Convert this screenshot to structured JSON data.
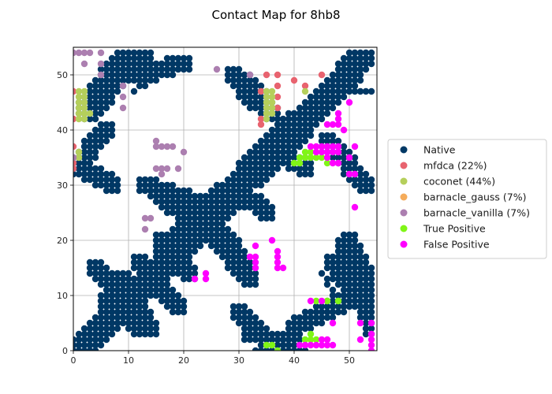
{
  "chart_data": {
    "type": "scatter",
    "title": "Contact Map for 8hb8",
    "xlabel": "",
    "ylabel": "",
    "xlim": [
      0,
      55
    ],
    "ylim": [
      0,
      55
    ],
    "xticks": [
      0,
      10,
      20,
      30,
      40,
      50
    ],
    "yticks": [
      0,
      10,
      20,
      30,
      40,
      50
    ],
    "grid": true,
    "legend_position": "right",
    "series": [
      {
        "name": "Native",
        "color": "#003865",
        "points": [],
        "segments": [
          {
            "x0": 0,
            "y0": 0,
            "x1": 5,
            "y1": 5,
            "w": 2
          },
          {
            "x0": 3,
            "y0": 2,
            "x1": 15,
            "y1": 14,
            "w": 3
          },
          {
            "x0": 6,
            "y0": 9,
            "x1": 12,
            "y1": 4,
            "w": 2
          },
          {
            "x0": 4,
            "y0": 15,
            "x1": 10,
            "y1": 9,
            "w": 2
          },
          {
            "x0": 9,
            "y0": 13,
            "x1": 14,
            "y1": 4,
            "w": 2
          },
          {
            "x0": 12,
            "y0": 11,
            "x1": 21,
            "y1": 21,
            "w": 3
          },
          {
            "x0": 12,
            "y0": 16,
            "x1": 19,
            "y1": 8,
            "w": 2
          },
          {
            "x0": 16,
            "y0": 20,
            "x1": 21,
            "y1": 14,
            "w": 2
          },
          {
            "x0": 20,
            "y0": 20,
            "x1": 27,
            "y1": 27,
            "w": 4
          },
          {
            "x0": 20,
            "y0": 27,
            "x1": 28,
            "y1": 19,
            "w": 3
          },
          {
            "x0": 13,
            "y0": 30,
            "x1": 22,
            "y1": 27,
            "w": 2
          },
          {
            "x0": 16,
            "y0": 28,
            "x1": 21,
            "y1": 24,
            "w": 2
          },
          {
            "x0": 27,
            "y0": 27,
            "x1": 34,
            "y1": 34,
            "w": 3
          },
          {
            "x0": 26,
            "y0": 20,
            "x1": 32,
            "y1": 13,
            "w": 2
          },
          {
            "x0": 29,
            "y0": 18,
            "x1": 32,
            "y1": 13,
            "w": 2
          },
          {
            "x0": 30,
            "y0": 29,
            "x1": 35,
            "y1": 25,
            "w": 2
          },
          {
            "x0": 33,
            "y0": 33,
            "x1": 40,
            "y1": 40,
            "w": 4
          },
          {
            "x0": 36,
            "y0": 37,
            "x1": 42,
            "y1": 33,
            "w": 2
          },
          {
            "x0": 40,
            "y0": 40,
            "x1": 48,
            "y1": 48,
            "w": 3
          },
          {
            "x0": 46,
            "y0": 46,
            "x1": 53,
            "y1": 54,
            "w": 3
          },
          {
            "x0": 46,
            "y0": 38,
            "x1": 53,
            "y1": 30,
            "w": 2
          },
          {
            "x0": 49,
            "y0": 19,
            "x1": 54,
            "y1": 13,
            "w": 2
          },
          {
            "x0": 47,
            "y0": 16,
            "x1": 52,
            "y1": 9,
            "w": 2
          },
          {
            "x0": 50,
            "y0": 20,
            "x1": 54,
            "y1": 4,
            "w": 2
          },
          {
            "x0": 40,
            "y0": 4,
            "x1": 49,
            "y1": 9,
            "w": 2
          },
          {
            "x0": 45,
            "y0": 14,
            "x1": 49,
            "y1": 7,
            "w": 1
          },
          {
            "x0": 30,
            "y0": 7,
            "x1": 36,
            "y1": 1,
            "w": 2
          },
          {
            "x0": 32,
            "y0": 3,
            "x1": 40,
            "y1": 1,
            "w": 2
          },
          {
            "x0": 33,
            "y0": 0,
            "x1": 42,
            "y1": 0,
            "w": 1
          },
          {
            "x0": 6,
            "y0": 50,
            "x1": 13,
            "y1": 53,
            "w": 2
          },
          {
            "x0": 3,
            "y0": 44,
            "x1": 10,
            "y1": 53,
            "w": 3
          },
          {
            "x0": 12,
            "y0": 50,
            "x1": 20,
            "y1": 52,
            "w": 2
          },
          {
            "x0": 11,
            "y0": 47,
            "x1": 15,
            "y1": 49,
            "w": 1
          },
          {
            "x0": 0,
            "y0": 33,
            "x1": 6,
            "y1": 40,
            "w": 2
          },
          {
            "x0": 2,
            "y0": 33,
            "x1": 7,
            "y1": 30,
            "w": 2
          },
          {
            "x0": 29,
            "y0": 50,
            "x1": 33,
            "y1": 45,
            "w": 2
          },
          {
            "x0": 31,
            "y0": 49,
            "x1": 36,
            "y1": 43,
            "w": 2
          },
          {
            "x0": 49,
            "y0": 50,
            "x1": 54,
            "y1": 54,
            "w": 2
          },
          {
            "x0": 50,
            "y0": 47,
            "x1": 54,
            "y1": 47,
            "w": 1
          }
        ]
      },
      {
        "name": "mfdca (22%)",
        "color": "#e8636f",
        "points": [
          [
            0,
            47
          ],
          [
            0,
            42
          ],
          [
            0,
            37
          ],
          [
            0,
            34
          ],
          [
            34,
            47
          ],
          [
            34,
            42
          ],
          [
            34,
            41
          ],
          [
            35,
            50
          ],
          [
            37,
            50
          ],
          [
            37,
            48
          ],
          [
            37,
            46
          ],
          [
            37,
            44
          ],
          [
            40,
            49
          ],
          [
            42,
            48
          ],
          [
            45,
            50
          ],
          [
            0,
            33
          ]
        ]
      },
      {
        "name": "coconet (44%)",
        "color": "#b5cf5b",
        "points": [
          [
            1,
            47
          ],
          [
            1,
            46
          ],
          [
            1,
            45
          ],
          [
            1,
            44
          ],
          [
            1,
            43
          ],
          [
            1,
            42
          ],
          [
            2,
            47
          ],
          [
            2,
            46
          ],
          [
            2,
            45
          ],
          [
            2,
            44
          ],
          [
            2,
            43
          ],
          [
            2,
            42
          ],
          [
            3,
            43
          ],
          [
            1,
            36
          ],
          [
            1,
            35
          ],
          [
            35,
            47
          ],
          [
            35,
            46
          ],
          [
            35,
            45
          ],
          [
            35,
            44
          ],
          [
            35,
            43
          ],
          [
            35,
            42
          ],
          [
            36,
            47
          ],
          [
            36,
            46
          ],
          [
            36,
            45
          ],
          [
            36,
            44
          ],
          [
            36,
            43
          ],
          [
            42,
            47
          ]
        ]
      },
      {
        "name": "barnacle_gauss (7%)",
        "color": "#f5ac5b",
        "points": []
      },
      {
        "name": "barnacle_vanilla (7%)",
        "color": "#ac7fb0",
        "points": [
          [
            0,
            54
          ],
          [
            1,
            54
          ],
          [
            2,
            54
          ],
          [
            3,
            54
          ],
          [
            2,
            52
          ],
          [
            5,
            54
          ],
          [
            5,
            52
          ],
          [
            5,
            50
          ],
          [
            9,
            48
          ],
          [
            9,
            46
          ],
          [
            9,
            44
          ],
          [
            13,
            24
          ],
          [
            14,
            24
          ],
          [
            13,
            22
          ],
          [
            15,
            38
          ],
          [
            15,
            37
          ],
          [
            16,
            37
          ],
          [
            17,
            37
          ],
          [
            18,
            37
          ],
          [
            15,
            33
          ],
          [
            16,
            33
          ],
          [
            17,
            33
          ],
          [
            16,
            32
          ],
          [
            19,
            33
          ],
          [
            20,
            36
          ],
          [
            26,
            51
          ],
          [
            32,
            50
          ],
          [
            0,
            35
          ]
        ]
      },
      {
        "name": "True Positive",
        "color": "#80f517",
        "points": [
          [
            40,
            34
          ],
          [
            41,
            34
          ],
          [
            41,
            35
          ],
          [
            42,
            35
          ],
          [
            42,
            36
          ],
          [
            43,
            36
          ],
          [
            43,
            35
          ],
          [
            44,
            35
          ],
          [
            45,
            35
          ],
          [
            46,
            34
          ],
          [
            44,
            9
          ],
          [
            46,
            9
          ],
          [
            48,
            9
          ],
          [
            42,
            2
          ],
          [
            43,
            2
          ],
          [
            43,
            3
          ],
          [
            44,
            2
          ],
          [
            35,
            1
          ],
          [
            36,
            1
          ],
          [
            37,
            0
          ]
        ]
      },
      {
        "name": "False Positive",
        "color": "#ff00ff",
        "points": [
          [
            43,
            37
          ],
          [
            44,
            37
          ],
          [
            45,
            37
          ],
          [
            46,
            37
          ],
          [
            47,
            37
          ],
          [
            48,
            37
          ],
          [
            51,
            37
          ],
          [
            46,
            36
          ],
          [
            47,
            36
          ],
          [
            48,
            36
          ],
          [
            44,
            36
          ],
          [
            45,
            36
          ],
          [
            46,
            35
          ],
          [
            47,
            34
          ],
          [
            48,
            34
          ],
          [
            50,
            35
          ],
          [
            50,
            32
          ],
          [
            51,
            32
          ],
          [
            46,
            41
          ],
          [
            47,
            41
          ],
          [
            48,
            41
          ],
          [
            48,
            42
          ],
          [
            49,
            40
          ],
          [
            48,
            43
          ],
          [
            50,
            45
          ],
          [
            51,
            26
          ],
          [
            33,
            19
          ],
          [
            36,
            20
          ],
          [
            32,
            17
          ],
          [
            33,
            17
          ],
          [
            33,
            16
          ],
          [
            33,
            15
          ],
          [
            37,
            18
          ],
          [
            37,
            17
          ],
          [
            37,
            16
          ],
          [
            37,
            15
          ],
          [
            38,
            15
          ],
          [
            22,
            13
          ],
          [
            24,
            14
          ],
          [
            24,
            13
          ],
          [
            43,
            9
          ],
          [
            45,
            9
          ],
          [
            47,
            5
          ],
          [
            52,
            5
          ],
          [
            54,
            5
          ],
          [
            52,
            2
          ],
          [
            54,
            3
          ],
          [
            54,
            2
          ],
          [
            54,
            1
          ],
          [
            54,
            0
          ],
          [
            41,
            1
          ],
          [
            42,
            1
          ],
          [
            43,
            1
          ],
          [
            44,
            1
          ],
          [
            45,
            1
          ],
          [
            46,
            1
          ],
          [
            47,
            1
          ],
          [
            45,
            2
          ],
          [
            46,
            2
          ]
        ]
      }
    ]
  }
}
